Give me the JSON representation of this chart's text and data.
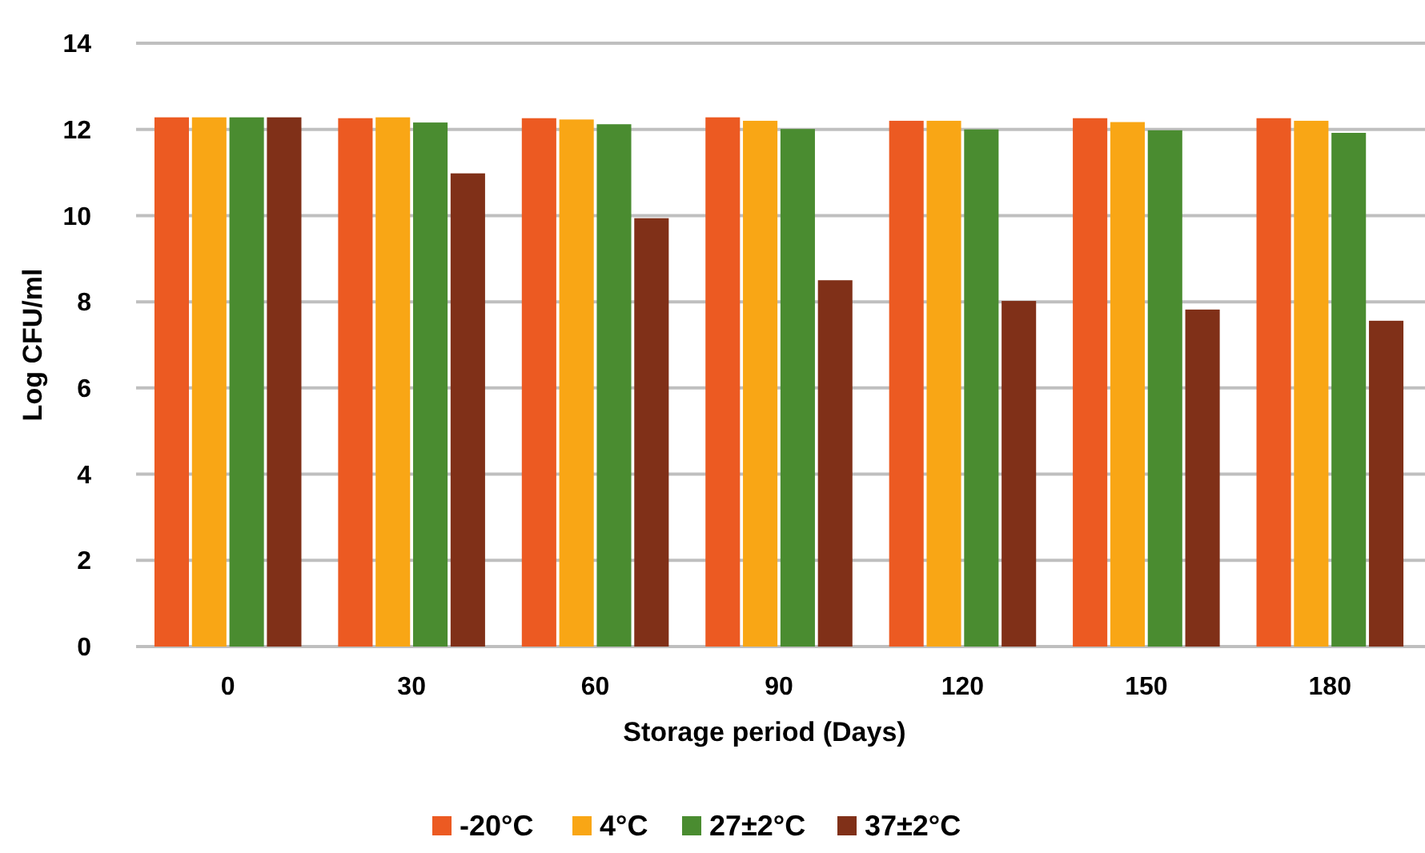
{
  "chart_data": {
    "type": "bar",
    "xlabel": "Storage period (Days)",
    "ylabel": "Log CFU/ml",
    "categories": [
      "0",
      "30",
      "60",
      "90",
      "120",
      "150",
      "180"
    ],
    "series": [
      {
        "name": "-20°C",
        "color": "#ec5a22",
        "values": [
          12.28,
          12.26,
          12.26,
          12.28,
          12.2,
          12.26,
          12.26
        ]
      },
      {
        "name": "4°C",
        "color": "#f9a615",
        "values": [
          12.28,
          12.28,
          12.23,
          12.2,
          12.2,
          12.17,
          12.2
        ]
      },
      {
        "name": "27±2°C",
        "color": "#4a8c30",
        "values": [
          12.28,
          12.16,
          12.12,
          12.01,
          12.0,
          11.98,
          11.92
        ]
      },
      {
        "name": "37±2°C",
        "color": "#803018",
        "values": [
          12.28,
          10.98,
          9.94,
          8.5,
          8.02,
          7.82,
          7.56
        ]
      }
    ],
    "ylim": [
      0,
      14
    ],
    "yticks": [
      0,
      2,
      4,
      6,
      8,
      10,
      12,
      14
    ],
    "grid": "y",
    "legend": "bottom"
  }
}
